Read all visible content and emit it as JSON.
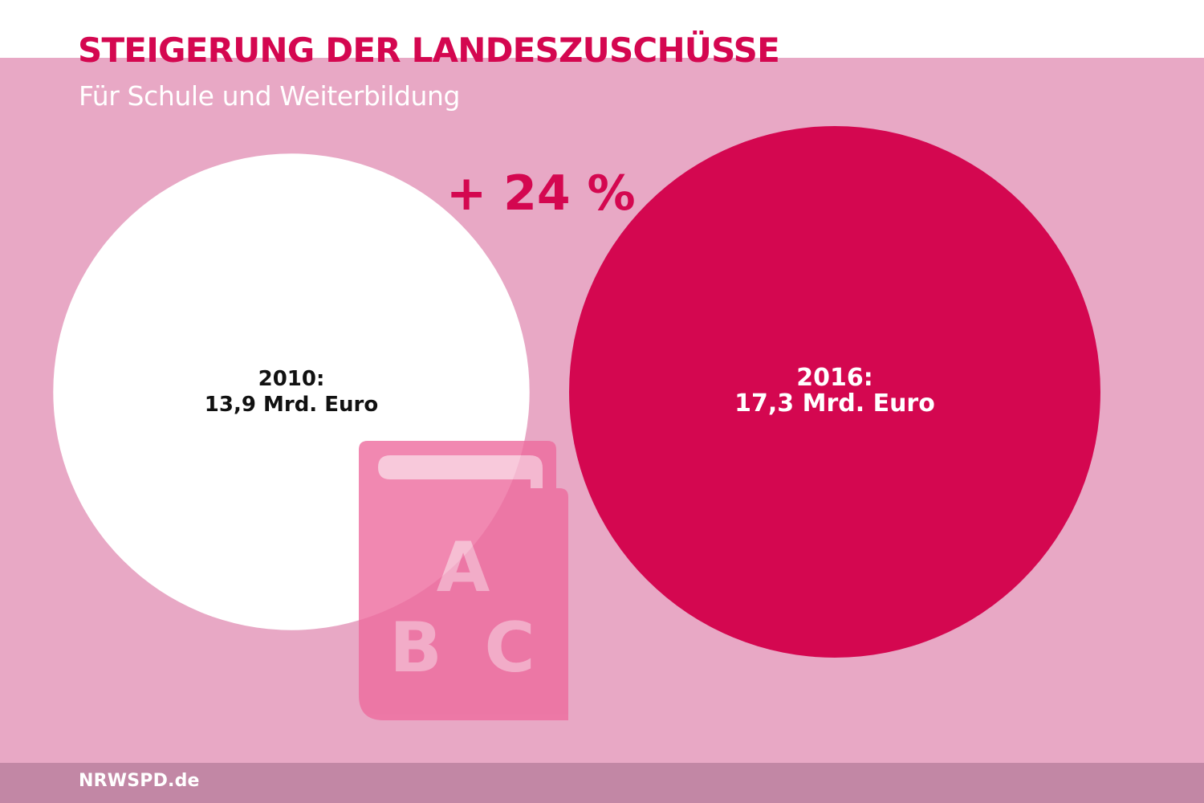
{
  "title": "STEIGERUNG DER LANDESZUSCHÜSSE",
  "subtitle": "Für Schule und Weiterbildung",
  "change_label": "+ 24 %",
  "footer": "NRWSPD.de",
  "icon": {
    "name": "abc-book-icon",
    "letters": [
      "A",
      "B",
      "C"
    ],
    "color": "#ee6b9e"
  },
  "colors": {
    "accent": "#d40750",
    "background": "#e8a8c5",
    "footer": "#c287a5",
    "first_bubble": "#ffffff"
  },
  "chart_data": {
    "type": "bubble",
    "title": "STEIGERUNG DER LANDESZUSCHÜSSE",
    "subtitle": "Für Schule und Weiterbildung",
    "unit": "Mrd. Euro",
    "series": [
      {
        "year": "2010:",
        "value": 13.9,
        "value_label": "13,9 Mrd. Euro",
        "color": "#ffffff",
        "text_color": "#111111"
      },
      {
        "year": "2016:",
        "value": 17.3,
        "value_label": "17,3 Mrd. Euro",
        "color": "#d40750",
        "text_color": "#ffffff"
      }
    ],
    "change_percent": 24,
    "change_label": "+ 24 %"
  }
}
